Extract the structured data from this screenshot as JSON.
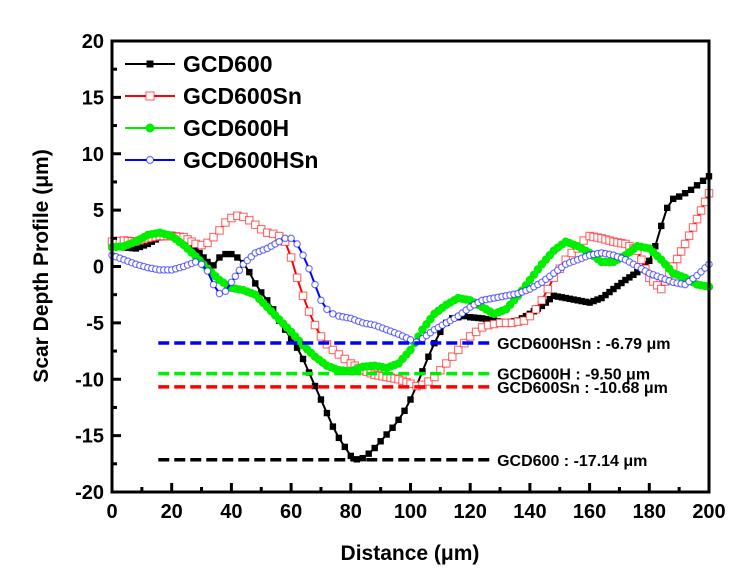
{
  "chart_data": {
    "type": "line",
    "title": "",
    "xlabel": "Distance (μm)",
    "ylabel": "Scar Depth Profile (μm)",
    "xlim": [
      0,
      200
    ],
    "ylim": [
      -20,
      20
    ],
    "xticks": [
      0,
      20,
      40,
      60,
      80,
      100,
      120,
      140,
      160,
      180,
      200
    ],
    "xtick_labels": [
      "0",
      "20",
      "40",
      "60",
      "80",
      "100",
      "120",
      "140",
      "160",
      "180",
      "200"
    ],
    "yticks": [
      -20,
      -15,
      -10,
      -5,
      0,
      5,
      10,
      15,
      20
    ],
    "ytick_labels": [
      "-20",
      "-15",
      "-10",
      "-5",
      "0",
      "5",
      "10",
      "15",
      "20"
    ],
    "grid": false,
    "legend_position": "top-left",
    "series": [
      {
        "name": "GCD600",
        "color": "#000000",
        "marker": "filled-square",
        "x": [
          0,
          4,
          8,
          12,
          16,
          20,
          24,
          28,
          32,
          34,
          36,
          38,
          40,
          42,
          44,
          46,
          48,
          50,
          52,
          54,
          56,
          58,
          60,
          62,
          64,
          66,
          68,
          70,
          72,
          74,
          76,
          78,
          80,
          82,
          84,
          86,
          88,
          90,
          92,
          94,
          96,
          98,
          100,
          102,
          104,
          106,
          108,
          110,
          112,
          114,
          116,
          118,
          120,
          124,
          128,
          132,
          136,
          140,
          144,
          148,
          152,
          156,
          160,
          164,
          168,
          172,
          176,
          180,
          182,
          184,
          186,
          188,
          190,
          192,
          194,
          196,
          198,
          200
        ],
        "y": [
          1.8,
          1.7,
          1.6,
          2.0,
          2.6,
          2.8,
          2.5,
          1.6,
          0.4,
          0.1,
          0.8,
          1.1,
          1.1,
          0.8,
          0.3,
          -0.5,
          -1.5,
          -2.3,
          -3.0,
          -3.8,
          -4.8,
          -5.6,
          -6.4,
          -7.2,
          -8.2,
          -9.4,
          -10.6,
          -11.8,
          -13.0,
          -14.2,
          -15.2,
          -16.0,
          -16.8,
          -17.1,
          -17.0,
          -16.6,
          -16.1,
          -15.5,
          -14.9,
          -14.3,
          -13.6,
          -12.8,
          -11.8,
          -10.6,
          -9.3,
          -8.0,
          -6.8,
          -5.8,
          -5.0,
          -4.6,
          -4.5,
          -4.4,
          -4.5,
          -4.6,
          -4.8,
          -5.0,
          -4.8,
          -4.2,
          -3.5,
          -2.6,
          -2.8,
          -3.0,
          -3.2,
          -2.8,
          -2.0,
          -1.2,
          -0.5,
          0.5,
          1.8,
          3.6,
          5.2,
          6.0,
          6.2,
          6.5,
          6.8,
          7.2,
          7.6,
          8.0
        ]
      },
      {
        "name": "GCD600Sn",
        "color": "#ff0000",
        "marker": "open-square",
        "x": [
          0,
          4,
          8,
          12,
          16,
          20,
          24,
          28,
          30,
          32,
          34,
          36,
          38,
          40,
          42,
          44,
          46,
          48,
          50,
          52,
          54,
          56,
          58,
          60,
          62,
          64,
          66,
          68,
          70,
          72,
          74,
          76,
          78,
          80,
          84,
          88,
          92,
          96,
          100,
          102,
          104,
          106,
          108,
          110,
          112,
          114,
          116,
          118,
          120,
          122,
          124,
          126,
          128,
          130,
          132,
          134,
          136,
          138,
          140,
          142,
          144,
          146,
          148,
          150,
          152,
          154,
          156,
          158,
          160,
          164,
          168,
          172,
          176,
          180,
          184,
          188,
          192,
          196,
          200
        ],
        "y": [
          2.2,
          2.3,
          2.2,
          2.5,
          2.7,
          2.7,
          2.6,
          2.0,
          1.9,
          2.1,
          2.6,
          3.2,
          3.9,
          4.3,
          4.5,
          4.4,
          4.1,
          3.7,
          3.3,
          3.0,
          2.9,
          2.7,
          2.2,
          0.8,
          -1.0,
          -2.6,
          -4.0,
          -5.2,
          -6.2,
          -6.9,
          -7.4,
          -7.8,
          -8.2,
          -8.6,
          -9.2,
          -9.6,
          -9.8,
          -10.0,
          -10.4,
          -10.6,
          -10.5,
          -10.2,
          -9.8,
          -9.2,
          -8.6,
          -8.0,
          -7.4,
          -6.8,
          -6.2,
          -5.8,
          -5.4,
          -5.2,
          -5.1,
          -5.0,
          -5.0,
          -5.0,
          -4.9,
          -4.8,
          -4.4,
          -3.8,
          -3.0,
          -2.0,
          -1.0,
          -0.2,
          0.6,
          1.2,
          1.6,
          2.3,
          2.7,
          2.5,
          2.2,
          2.0,
          1.4,
          -1.0,
          -2.0,
          0.0,
          2.0,
          4.2,
          6.5
        ]
      },
      {
        "name": "GCD600H",
        "color": "#00ee00",
        "marker": "filled-circle",
        "x": [
          0,
          4,
          8,
          12,
          16,
          20,
          24,
          28,
          32,
          36,
          40,
          44,
          48,
          52,
          56,
          60,
          64,
          68,
          72,
          76,
          80,
          84,
          88,
          92,
          96,
          100,
          104,
          108,
          112,
          116,
          120,
          124,
          128,
          132,
          136,
          140,
          144,
          148,
          152,
          156,
          160,
          164,
          168,
          172,
          176,
          180,
          184,
          188,
          192,
          196,
          200
        ],
        "y": [
          1.7,
          1.8,
          2.2,
          2.8,
          3.0,
          2.7,
          1.9,
          0.9,
          -0.2,
          -1.2,
          -1.9,
          -2.1,
          -2.5,
          -3.6,
          -4.7,
          -5.8,
          -7.0,
          -8.0,
          -8.8,
          -9.2,
          -9.3,
          -8.9,
          -8.8,
          -9.0,
          -8.6,
          -7.4,
          -5.6,
          -4.2,
          -3.4,
          -2.8,
          -3.0,
          -3.6,
          -4.2,
          -3.8,
          -2.6,
          -1.2,
          0.2,
          1.4,
          2.2,
          1.8,
          1.2,
          0.4,
          0.4,
          1.0,
          1.8,
          1.6,
          0.6,
          -0.6,
          -1.0,
          -1.6,
          -1.8
        ]
      },
      {
        "name": "GCD600HSn",
        "color": "#0000ff",
        "marker": "open-circle",
        "x": [
          0,
          4,
          8,
          12,
          16,
          20,
          24,
          28,
          30,
          32,
          34,
          36,
          38,
          40,
          44,
          48,
          52,
          56,
          58,
          60,
          62,
          64,
          66,
          68,
          70,
          72,
          74,
          76,
          80,
          84,
          88,
          92,
          96,
          100,
          102,
          104,
          108,
          112,
          116,
          120,
          124,
          128,
          132,
          136,
          140,
          144,
          148,
          152,
          156,
          160,
          164,
          168,
          172,
          176,
          180,
          184,
          188,
          192,
          196,
          200
        ],
        "y": [
          1.0,
          0.6,
          0.2,
          -0.1,
          -0.3,
          -0.3,
          0.0,
          0.4,
          0.2,
          -0.4,
          -1.6,
          -2.4,
          -2.2,
          -1.4,
          0.2,
          1.2,
          1.6,
          2.2,
          2.5,
          2.5,
          2.0,
          1.0,
          -0.2,
          -1.6,
          -3.0,
          -3.8,
          -4.2,
          -4.4,
          -4.6,
          -5.0,
          -5.2,
          -5.6,
          -6.0,
          -6.5,
          -6.7,
          -6.4,
          -5.6,
          -5.0,
          -4.4,
          -3.6,
          -3.0,
          -2.8,
          -2.6,
          -2.4,
          -2.0,
          -1.4,
          -0.6,
          0.2,
          0.6,
          1.0,
          1.2,
          1.0,
          0.6,
          0.0,
          -0.6,
          -1.0,
          -1.4,
          -1.6,
          -0.8,
          0.2
        ]
      }
    ],
    "reference_lines": [
      {
        "name": "GCD600HSn",
        "value": -6.79,
        "color": "#0000ff",
        "x_start": 15.5,
        "x_end": 127,
        "label": "GCD600HSn : -6.79 μm"
      },
      {
        "name": "GCD600H",
        "value": -9.5,
        "color": "#00ee00",
        "x_start": 15.5,
        "x_end": 127,
        "label": "GCD600H : -9.50 μm"
      },
      {
        "name": "GCD600Sn",
        "value": -10.68,
        "color": "#ff0000",
        "x_start": 15.5,
        "x_end": 127,
        "label": "GCD600Sn : -10.68 μm"
      },
      {
        "name": "GCD600",
        "value": -17.14,
        "color": "#000000",
        "x_start": 15.5,
        "x_end": 127,
        "label": "GCD600 : -17.14 μm"
      }
    ]
  }
}
